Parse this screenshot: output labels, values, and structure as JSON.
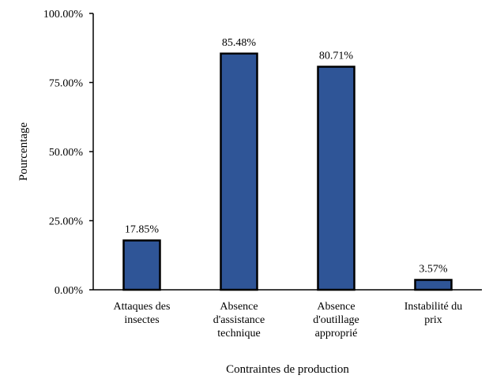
{
  "chart_data": {
    "type": "bar",
    "categories": [
      [
        "Attaques des",
        "insectes"
      ],
      [
        "Absence",
        "d'assistance",
        "technique"
      ],
      [
        "Absence",
        "d'outillage",
        "approprié"
      ],
      [
        "Instabilité du",
        "prix"
      ]
    ],
    "values": [
      17.85,
      85.48,
      80.71,
      3.57
    ],
    "data_labels": [
      "17.85%",
      "85.48%",
      "80.71%",
      "3.57%"
    ],
    "title": "",
    "xlabel": "Contraintes de production",
    "ylabel": "Pourcentage",
    "ylim": [
      0,
      100
    ],
    "y_ticks": [
      {
        "value": 0,
        "label": "0.00%"
      },
      {
        "value": 25,
        "label": "25.00%"
      },
      {
        "value": 50,
        "label": "50.00%"
      },
      {
        "value": 75,
        "label": "75.00%"
      },
      {
        "value": 100,
        "label": "100.00%"
      }
    ],
    "grid": false,
    "legend": "none",
    "colors": {
      "bar_fill": "#2F5597",
      "bar_stroke": "#000000",
      "axis": "#000000"
    }
  }
}
